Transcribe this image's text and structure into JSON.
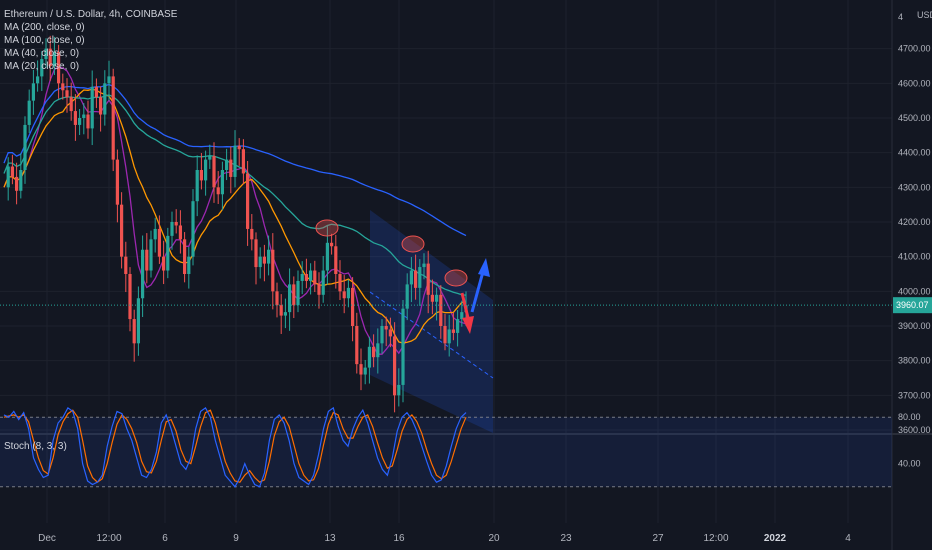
{
  "legend": {
    "title": "Ethereum / U.S. Dollar, 4h, COINBASE",
    "ma": [
      "MA (200, close, 0)",
      "MA (100, close, 0)",
      "MA (40, close, 0)",
      "MA (20, close, 0)"
    ],
    "stoch": "Stoch (8, 3, 3)"
  },
  "chart_data": {
    "type": "candlestick",
    "currency": "USD",
    "price_axis": {
      "ticks": [
        4700,
        4600,
        4500,
        4400,
        4300,
        4200,
        4100,
        4000,
        3900,
        3800,
        3700,
        3600
      ],
      "tick_labels": [
        "4700.00",
        "4600.00",
        "4500.00",
        "4400.00",
        "4300.00",
        "4200.00",
        "4100.00",
        "4000.00",
        "3900.00",
        "3800.00",
        "3700.00",
        "3600.00"
      ],
      "top_label": "4",
      "range": [
        3510,
        4830
      ]
    },
    "last_price": 3960.07,
    "last_price_label": "3960.07",
    "x_axis_labels": [
      "Dec",
      "12:00",
      "6",
      "9",
      "13",
      "16",
      "20",
      "23",
      "27",
      "12:00",
      "2022",
      "4"
    ],
    "stoch_axis": {
      "ticks": [
        80,
        40
      ],
      "tick_labels": [
        "80.00",
        "40.00"
      ],
      "overbought": 80,
      "oversold": 20
    },
    "colors": {
      "up": "#26a69a",
      "down": "#ef5350",
      "ma200": "#2962ff",
      "ma100": "#26a69a",
      "ma40": "#ff9800",
      "ma20": "#9c27b0",
      "stoch_k": "#2962ff",
      "stoch_d": "#ff6d00",
      "channel": "#2962ff",
      "arrow_up": "#2962ff",
      "arrow_down": "#f23645"
    },
    "candle_series": [
      4300,
      4360,
      4330,
      4290,
      4350,
      4480,
      4550,
      4600,
      4620,
      4670,
      4700,
      4650,
      4690,
      4600,
      4580,
      4560,
      4520,
      4480,
      4500,
      4510,
      4470,
      4590,
      4560,
      4510,
      4600,
      4620,
      4380,
      4250,
      4100,
      4050,
      3920,
      3850,
      3980,
      4120,
      4060,
      4150,
      4180,
      4100,
      4060,
      4160,
      4200,
      4190,
      4150,
      4050,
      4100,
      4260,
      4350,
      4320,
      4380,
      4390,
      4300,
      4280,
      4350,
      4380,
      4330,
      4420,
      4410,
      4340,
      4180,
      4150,
      4070,
      4100,
      4080,
      4120,
      4000,
      3960,
      3930,
      3940,
      4020,
      3960,
      4030,
      4050,
      4030,
      4060,
      4020,
      3990,
      4060,
      4140,
      4130,
      4050,
      4000,
      3980,
      4010,
      3900,
      3790,
      3760,
      3780,
      3840,
      3810,
      3850,
      3900,
      3890,
      3870,
      3700,
      3730,
      3950,
      4020,
      4060,
      4010,
      4070,
      4080,
      3990,
      3970,
      3990,
      3900,
      3850,
      3890,
      3880,
      3920,
      3940,
      3960
    ],
    "stoch_k": [
      82,
      80,
      85,
      78,
      84,
      70,
      45,
      35,
      28,
      30,
      60,
      75,
      80,
      88,
      85,
      70,
      40,
      25,
      22,
      24,
      30,
      55,
      72,
      85,
      83,
      70,
      60,
      45,
      30,
      28,
      35,
      50,
      75,
      82,
      70,
      55,
      40,
      35,
      45,
      70,
      85,
      88,
      80,
      60,
      45,
      30,
      25,
      20,
      28,
      40,
      30,
      22,
      20,
      32,
      60,
      78,
      82,
      75,
      60,
      40,
      28,
      25,
      22,
      30,
      48,
      70,
      85,
      88,
      72,
      60,
      55,
      70,
      80,
      86,
      75,
      60,
      45,
      35,
      30,
      45,
      68,
      80,
      84,
      78,
      68,
      55,
      42,
      30,
      24,
      26,
      38,
      55,
      70,
      80,
      84
    ],
    "stoch_d": [
      80,
      81,
      82,
      80,
      82,
      76,
      60,
      45,
      34,
      31,
      45,
      65,
      76,
      83,
      86,
      80,
      60,
      38,
      28,
      24,
      27,
      40,
      58,
      74,
      82,
      78,
      70,
      58,
      42,
      33,
      32,
      42,
      60,
      76,
      78,
      68,
      52,
      42,
      40,
      55,
      72,
      84,
      86,
      75,
      58,
      42,
      32,
      25,
      24,
      30,
      34,
      28,
      24,
      26,
      42,
      64,
      76,
      80,
      72,
      56,
      40,
      30,
      25,
      26,
      36,
      56,
      74,
      84,
      82,
      70,
      62,
      62,
      72,
      80,
      82,
      72,
      58,
      45,
      36,
      38,
      52,
      68,
      78,
      82,
      76,
      66,
      52,
      40,
      30,
      27,
      30,
      42,
      56,
      70,
      80
    ]
  }
}
